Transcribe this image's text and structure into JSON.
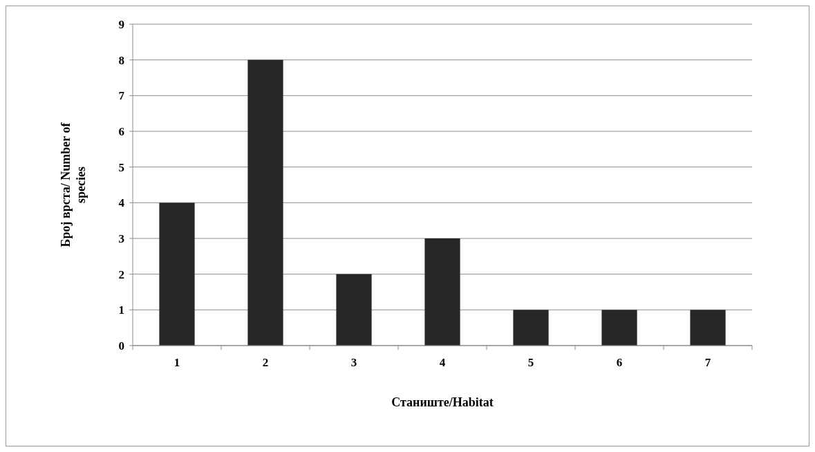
{
  "chart_data": {
    "type": "bar",
    "xlabel": "Станиште/Habitat",
    "ylabel": "Број врста/ Number of species",
    "categories": [
      "1",
      "2",
      "3",
      "4",
      "5",
      "6",
      "7"
    ],
    "values": [
      4,
      8,
      2,
      3,
      1,
      1,
      1
    ],
    "color": "#262626",
    "ylim": [
      0,
      9
    ],
    "yticks": [
      0,
      1,
      2,
      3,
      4,
      5,
      6,
      7,
      8,
      9
    ],
    "grid": "y"
  }
}
